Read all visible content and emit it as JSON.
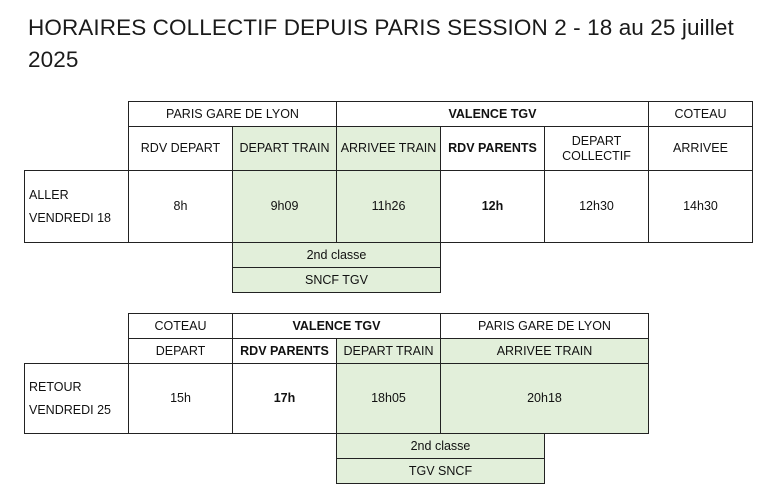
{
  "title": "HORAIRES COLLECTIF DEPUIS PARIS SESSION 2 - 18 au 25 juillet 2025",
  "colors": {
    "green_fill": "#e2efda",
    "border": "#222222"
  },
  "aller": {
    "groups": {
      "paris": "PARIS GARE DE LYON",
      "valence": "VALENCE TGV",
      "coteau": "COTEAU"
    },
    "headers": {
      "rdv_depart": "RDV DEPART",
      "depart_train": "DEPART TRAIN",
      "arrivee_train": "ARRIVEE TRAIN",
      "rdv_parents": "RDV PARENTS",
      "depart_collectif_1": "DEPART",
      "depart_collectif_2": "COLLECTIF",
      "arrivee": "ARRIVEE"
    },
    "row_label_1": "ALLER",
    "row_label_2": "VENDREDI 18",
    "values": {
      "rdv_depart": "8h",
      "depart_train": "9h09",
      "arrivee_train": "11h26",
      "rdv_parents": "12h",
      "depart_collectif": "12h30",
      "arrivee": "14h30"
    },
    "notes": {
      "classe": "2nd classe",
      "operator": "SNCF TGV"
    }
  },
  "retour": {
    "groups": {
      "coteau": "COTEAU",
      "valence": "VALENCE TGV",
      "paris": "PARIS GARE DE LYON"
    },
    "headers": {
      "depart": "DEPART",
      "rdv_parents": "RDV PARENTS",
      "depart_train": "DEPART TRAIN",
      "arrivee_train": "ARRIVEE TRAIN"
    },
    "row_label_1": "RETOUR",
    "row_label_2": "VENDREDI 25",
    "values": {
      "depart": "15h",
      "rdv_parents": "17h",
      "depart_train": "18h05",
      "arrivee_train": "20h18"
    },
    "notes": {
      "classe": "2nd classe",
      "operator": "TGV SNCF"
    }
  }
}
